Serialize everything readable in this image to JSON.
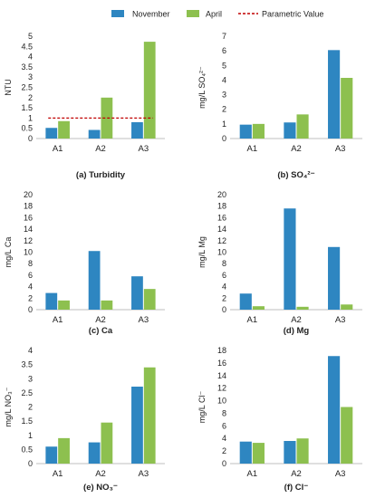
{
  "legend": {
    "items": [
      {
        "label": "November",
        "color": "#2e86c1",
        "kind": "bar"
      },
      {
        "label": "April",
        "color": "#8dc04f",
        "kind": "bar"
      },
      {
        "label": "Parametric Value",
        "color": "#c00000",
        "kind": "dashed-line"
      }
    ]
  },
  "chart_data": [
    {
      "type": "bar",
      "caption": "(a)  Turbidity",
      "ylabel": "NTU",
      "categories": [
        "A1",
        "A2",
        "A3"
      ],
      "ylim": [
        0,
        5
      ],
      "yticks": [
        "0",
        "0.5",
        "1",
        "1.5",
        "2",
        "2.5",
        "3",
        "3.5",
        "4",
        "4.5",
        "5"
      ],
      "ytick_values": [
        0,
        0.5,
        1,
        1.5,
        2,
        2.5,
        3,
        3.5,
        4,
        4.5,
        5
      ],
      "series": [
        {
          "name": "November",
          "values": [
            0.52,
            0.42,
            0.8
          ]
        },
        {
          "name": "April",
          "values": [
            0.85,
            2.0,
            4.73
          ]
        }
      ],
      "reference_line": {
        "name": "Parametric Value",
        "value": 1
      }
    },
    {
      "type": "bar",
      "caption": "(b) SO₄²⁻",
      "ylabel": "mg/L SO₄²⁻",
      "categories": [
        "A1",
        "A2",
        "A3"
      ],
      "ylim": [
        0,
        7
      ],
      "yticks": [
        "0",
        "1",
        "2",
        "3",
        "4",
        "5",
        "6",
        "7"
      ],
      "ytick_values": [
        0,
        1,
        2,
        3,
        4,
        5,
        6,
        7
      ],
      "series": [
        {
          "name": "November",
          "values": [
            0.95,
            1.1,
            6.05
          ]
        },
        {
          "name": "April",
          "values": [
            1.0,
            1.65,
            4.15
          ]
        }
      ]
    },
    {
      "type": "bar",
      "caption": "(c) Ca",
      "ylabel": "mg/L Ca",
      "categories": [
        "A1",
        "A2",
        "A3"
      ],
      "ylim": [
        0,
        20
      ],
      "yticks": [
        "0",
        "2",
        "4",
        "6",
        "8",
        "10",
        "12",
        "14",
        "16",
        "18",
        "20"
      ],
      "ytick_values": [
        0,
        2,
        4,
        6,
        8,
        10,
        12,
        14,
        16,
        18,
        20
      ],
      "series": [
        {
          "name": "November",
          "values": [
            2.9,
            10.2,
            5.8
          ]
        },
        {
          "name": "April",
          "values": [
            1.6,
            1.6,
            3.6
          ]
        }
      ]
    },
    {
      "type": "bar",
      "caption": "(d) Mg",
      "ylabel": "mg/L Mg",
      "categories": [
        "A1",
        "A2",
        "A3"
      ],
      "ylim": [
        0,
        20
      ],
      "yticks": [
        "0",
        "2",
        "4",
        "6",
        "8",
        "10",
        "12",
        "14",
        "16",
        "18",
        "20"
      ],
      "ytick_values": [
        0,
        2,
        4,
        6,
        8,
        10,
        12,
        14,
        16,
        18,
        20
      ],
      "series": [
        {
          "name": "November",
          "values": [
            2.8,
            17.6,
            10.9
          ]
        },
        {
          "name": "April",
          "values": [
            0.6,
            0.5,
            0.9
          ]
        }
      ]
    },
    {
      "type": "bar",
      "caption": "(e) NO₃⁻",
      "ylabel": "mg/L NO₃⁻",
      "categories": [
        "A1",
        "A2",
        "A3"
      ],
      "ylim": [
        0,
        4
      ],
      "yticks": [
        "0",
        "0.5",
        "1",
        "1.5",
        "2",
        "2.5",
        "3",
        "3.5",
        "4"
      ],
      "ytick_values": [
        0,
        0.5,
        1,
        1.5,
        2,
        2.5,
        3,
        3.5,
        4
      ],
      "series": [
        {
          "name": "November",
          "values": [
            0.6,
            0.75,
            2.72
          ]
        },
        {
          "name": "April",
          "values": [
            0.9,
            1.45,
            3.4
          ]
        }
      ]
    },
    {
      "type": "bar",
      "caption": "(f) Cl⁻",
      "ylabel": "mg/L Cl⁻",
      "categories": [
        "A1",
        "A2",
        "A3"
      ],
      "ylim": [
        0,
        18
      ],
      "yticks": [
        "0",
        "2",
        "4",
        "6",
        "8",
        "10",
        "12",
        "14",
        "16",
        "18"
      ],
      "ytick_values": [
        0,
        2,
        4,
        6,
        8,
        10,
        12,
        14,
        16,
        18
      ],
      "series": [
        {
          "name": "November",
          "values": [
            3.5,
            3.6,
            17.1
          ]
        },
        {
          "name": "April",
          "values": [
            3.3,
            4.0,
            9.0
          ]
        }
      ]
    }
  ]
}
